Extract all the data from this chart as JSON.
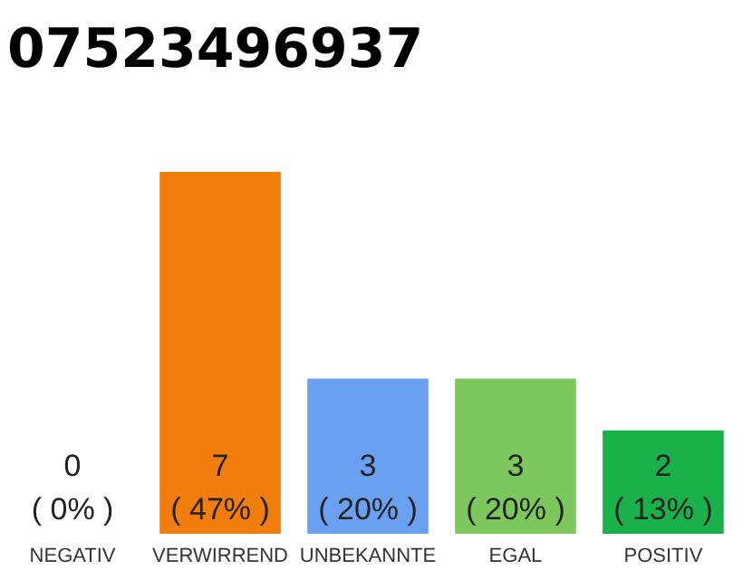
{
  "chart_data": {
    "type": "bar",
    "title": "07523496937",
    "categories": [
      "NEGATIV",
      "VERWIRREND",
      "UNBEKANNTE",
      "EGAL",
      "POSITIV"
    ],
    "values": [
      0,
      7,
      3,
      3,
      2
    ],
    "colors": [
      "#9e9e9e",
      "#f07d0c",
      "#6aa0f0",
      "#7dc85d",
      "#1ab14a"
    ],
    "value_labels": [
      "0\n( 0% )",
      "7\n( 47% )",
      "3\n( 20% )",
      "3\n( 20% )",
      "2\n( 13% )"
    ],
    "tick_labels": "x"
  }
}
